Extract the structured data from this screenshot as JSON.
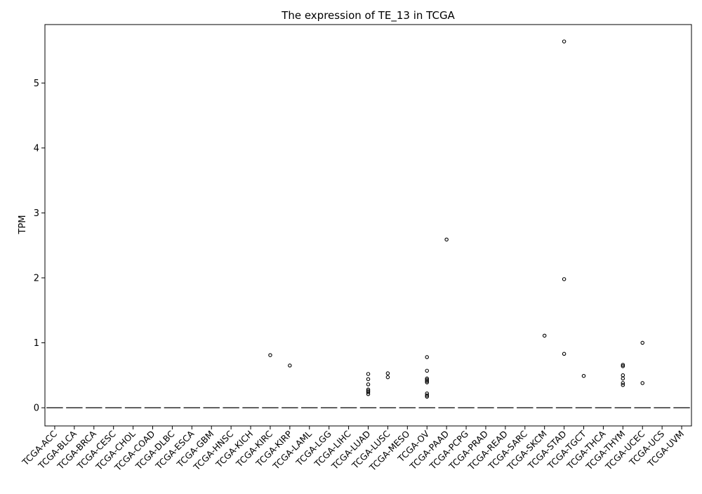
{
  "chart_data": {
    "type": "box",
    "title": "The expression of TE_13 in TCGA",
    "xlabel": "",
    "ylabel": "TPM",
    "ylim": [
      -0.28,
      5.9
    ],
    "yticks": [
      0,
      1,
      2,
      3,
      4,
      5
    ],
    "ytick_labels": [
      "0",
      "1",
      "2",
      "3",
      "4",
      "5"
    ],
    "grid": false,
    "legend": "none",
    "categories": [
      "TCGA-ACC",
      "TCGA-BLCA",
      "TCGA-BRCA",
      "TCGA-CESC",
      "TCGA-CHOL",
      "TCGA-COAD",
      "TCGA-DLBC",
      "TCGA-ESCA",
      "TCGA-GBM",
      "TCGA-HNSC",
      "TCGA-KICH",
      "TCGA-KIRC",
      "TCGA-KIRP",
      "TCGA-LAML",
      "TCGA-LGG",
      "TCGA-LIHC",
      "TCGA-LUAD",
      "TCGA-LUSC",
      "TCGA-MESO",
      "TCGA-OV",
      "TCGA-PAAD",
      "TCGA-PCPG",
      "TCGA-PRAD",
      "TCGA-READ",
      "TCGA-SARC",
      "TCGA-SKCM",
      "TCGA-STAD",
      "TCGA-TGCT",
      "TCGA-THCA",
      "TCGA-THYM",
      "TCGA-UCEC",
      "TCGA-UCS",
      "TCGA-UVM"
    ],
    "median": [
      0,
      0,
      0,
      0,
      0,
      0,
      0,
      0,
      0,
      0,
      0,
      0,
      0,
      0,
      0,
      0,
      0,
      0,
      0,
      0,
      0,
      0,
      0,
      0,
      0,
      0,
      0,
      0,
      0,
      0,
      0,
      0,
      0
    ],
    "outliers": [
      [],
      [],
      [],
      [],
      [],
      [],
      [],
      [],
      [],
      [],
      [],
      [
        0.81
      ],
      [
        0.65
      ],
      [],
      [],
      [],
      [
        0.52,
        0.44,
        0.36,
        0.28,
        0.26,
        0.24,
        0.21
      ],
      [
        0.53,
        0.47
      ],
      [],
      [
        0.78,
        0.57,
        0.45,
        0.43,
        0.41,
        0.39,
        0.22,
        0.19,
        0.17
      ],
      [
        2.59
      ],
      [],
      [],
      [],
      [],
      [
        1.11
      ],
      [
        5.64,
        1.98,
        0.83
      ],
      [
        0.49
      ],
      [],
      [
        0.66,
        0.64,
        0.5,
        0.45,
        0.38,
        0.35
      ],
      [
        1.0,
        0.38
      ],
      [],
      []
    ],
    "colors": {
      "median": "#555555",
      "outlier": "#000000",
      "axis": "#000000"
    }
  }
}
